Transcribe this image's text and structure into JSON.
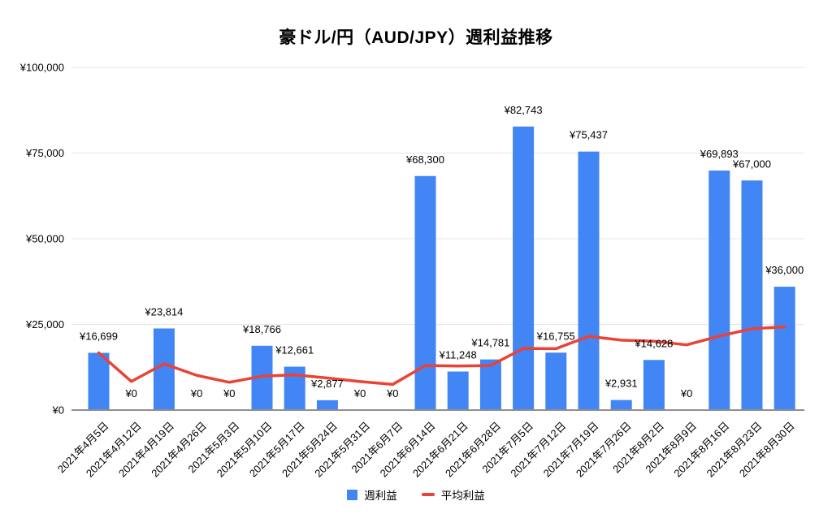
{
  "title": "豪ドル/円（AUD/JPY）週利益推移",
  "chart_data": {
    "type": "bar",
    "title": "豪ドル/円（AUD/JPY）週利益推移",
    "categories": [
      "2021年4月5日",
      "2021年4月12日",
      "2021年4月19日",
      "2021年4月26日",
      "2021年5月3日",
      "2021年5月10日",
      "2021年5月17日",
      "2021年5月24日",
      "2021年5月31日",
      "2021年6月7日",
      "2021年6月14日",
      "2021年6月21日",
      "2021年6月28日",
      "2021年7月5日",
      "2021年7月12日",
      "2021年7月19日",
      "2021年7月26日",
      "2021年8月2日",
      "2021年8月9日",
      "2021年8月16日",
      "2021年8月23日",
      "2021年8月30日"
    ],
    "series": [
      {
        "name": "週利益",
        "render": "bar",
        "color": "#4285f4",
        "values": [
          16699,
          0,
          23814,
          0,
          0,
          18766,
          12661,
          2877,
          0,
          0,
          68300,
          11248,
          14781,
          82743,
          16755,
          75437,
          2931,
          14628,
          0,
          69893,
          67000,
          36000
        ],
        "value_labels": [
          "¥16,699",
          "¥0",
          "¥23,814",
          "¥0",
          "¥0",
          "¥18,766",
          "¥12,661",
          "¥2,877",
          "¥0",
          "¥0",
          "¥68,300",
          "¥11,248",
          "¥14,781",
          "¥82,743",
          "¥16,755",
          "¥75,437",
          "¥2,931",
          "¥14,628",
          "¥0",
          "¥69,893",
          "¥67,000",
          "¥36,000"
        ]
      },
      {
        "name": "平均利益",
        "render": "line",
        "color": "#ea4335",
        "values": [
          16699,
          8349.5,
          13504.3,
          10128.3,
          8102.6,
          9879.8,
          10277.1,
          9352.1,
          8313,
          7481.7,
          13010.6,
          12863.8,
          13011.2,
          17992.1,
          17909.6,
          21505.1,
          20412.5,
          20091.1,
          19033.7,
          21576.7,
          23739.7,
          24297
        ]
      }
    ],
    "ylim": [
      0,
      100000
    ],
    "yticks": {
      "values": [
        0,
        25000,
        50000,
        75000,
        100000
      ],
      "labels": [
        "¥0",
        "¥25,000",
        "¥50,000",
        "¥75,000",
        "¥100,000"
      ]
    },
    "grid": true,
    "legend_position": "bottom",
    "colors": {
      "grid": "#e6e6e6",
      "axis": "#8f8f8f",
      "text": "#000000"
    }
  },
  "legend": {
    "items": [
      {
        "label": "週利益",
        "color": "#4285f4",
        "shape": "square"
      },
      {
        "label": "平均利益",
        "color": "#ea4335",
        "shape": "dash"
      }
    ]
  }
}
